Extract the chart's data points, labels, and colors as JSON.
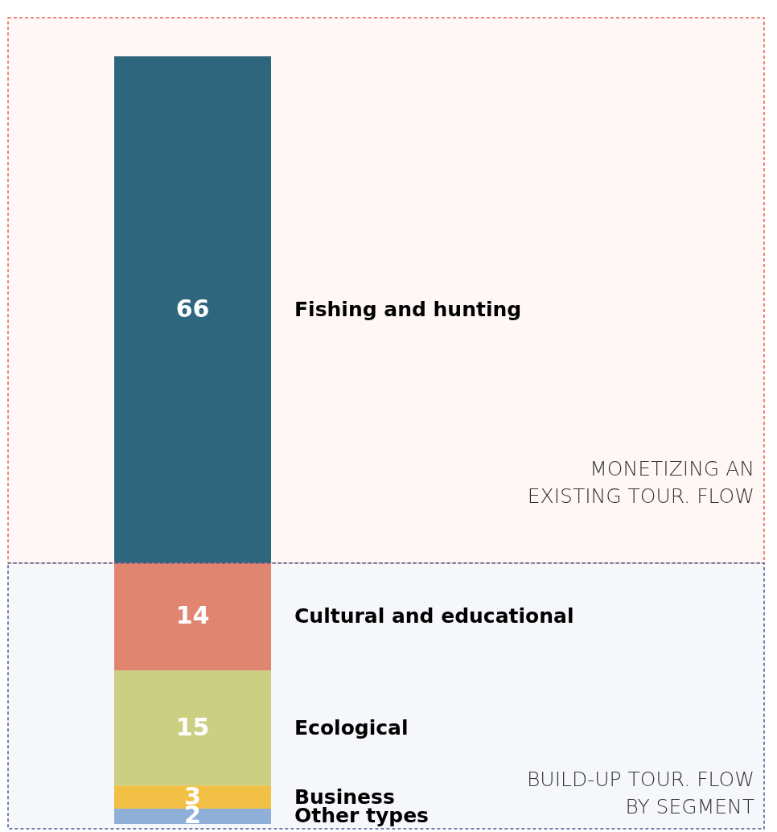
{
  "chart_data": {
    "type": "bar",
    "stacked": true,
    "categories": [
      null
    ],
    "data_labels": true,
    "legend": false,
    "series": [
      {
        "name": "Other types",
        "color": "#93b4dc",
        "values": [
          2
        ]
      },
      {
        "name": "Business",
        "color": "#fcc642",
        "values": [
          3
        ]
      },
      {
        "name": "Ecological",
        "color": "#d2d580",
        "values": [
          15
        ]
      },
      {
        "name": "Cultural and educational",
        "color": "#e8876e",
        "values": [
          14
        ]
      },
      {
        "name": "Fishing and hunting",
        "color": "#246780",
        "values": [
          66
        ]
      }
    ],
    "bands": [
      {
        "axis": "y",
        "from": 34,
        "to": 100,
        "label": "MONETIZING AN EXISTING TOUR. FLOW",
        "color": "#e8604c"
      },
      {
        "axis": "y",
        "from": 0,
        "to": 34,
        "label": "BUILD-UP TOUR. FLOW BY SEGMENT",
        "color": "#4a5a95"
      }
    ]
  }
}
